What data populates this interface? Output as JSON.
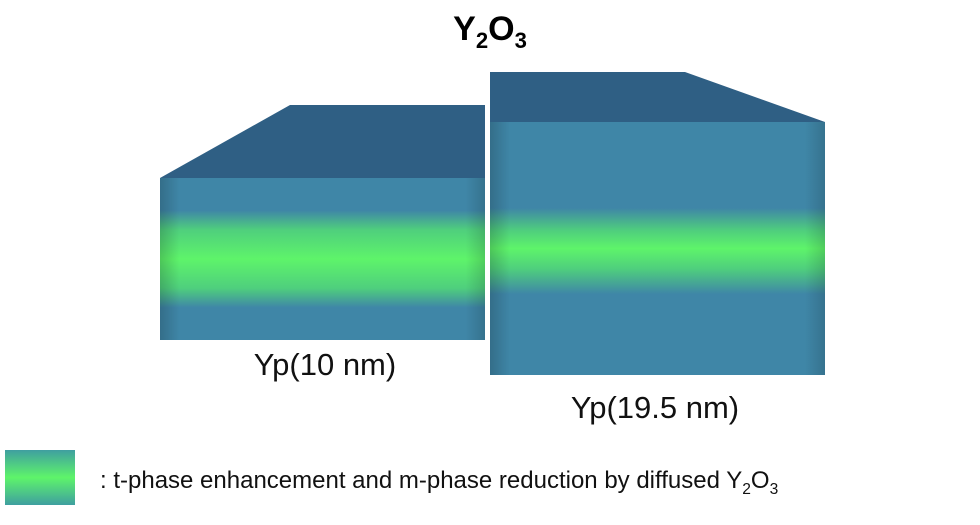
{
  "title": [
    "Y",
    "2",
    "O",
    "3"
  ],
  "boxes": [
    {
      "label": "Yp(10 nm)"
    },
    {
      "label": "Yp(19.5 nm)"
    }
  ],
  "legend": {
    "text": [
      ": t-phase enhancement and m-phase reduction by diffused Y",
      "2",
      "O",
      "3"
    ]
  }
}
